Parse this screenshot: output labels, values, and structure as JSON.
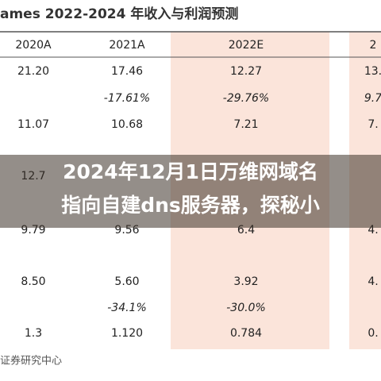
{
  "header": {
    "title": "ames 2022-2024 年收入与利润预测"
  },
  "table": {
    "columns": [
      "2020A",
      "2021A",
      "2022E",
      "2"
    ],
    "rows": [
      {
        "0": "21.20",
        "1": "17.46",
        "2": "12.27",
        "3": "13."
      },
      {
        "1": "-17.61%",
        "2": "-29.76%",
        "3": "9.7"
      },
      {
        "0": "11.07",
        "1": "10.68",
        "2": "7.21",
        "3": "7."
      },
      {
        "0": "12.7"
      },
      {
        "0": "9.79",
        "1": "9.56",
        "2": "6.4",
        "3": "4."
      },
      {
        "0": "8.50",
        "1": "5.60",
        "2": "3.92",
        "3": "4."
      },
      {
        "1": "-34.1%",
        "2": "-30.0%"
      },
      {
        "0": "1.3",
        "1": "1.120",
        "2": "0.784",
        "3": "0."
      }
    ]
  },
  "footer": {
    "source": "证券研究中心"
  },
  "banner": {
    "lines": [
      "2024年12月1日万维网域名",
      "指向自建dns服务器，探秘小"
    ]
  }
}
